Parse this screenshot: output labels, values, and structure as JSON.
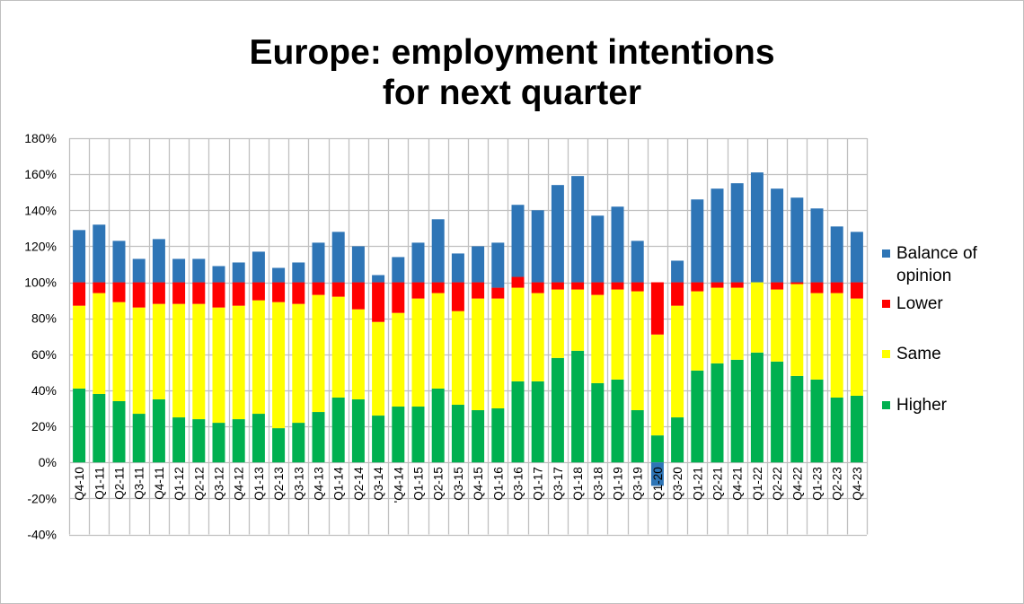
{
  "chart_data": {
    "type": "bar",
    "stacked": true,
    "title": [
      "Europe: employment intentions",
      "for next quarter"
    ],
    "xlabel": "",
    "ylabel": "",
    "ylim": [
      -40,
      180
    ],
    "yticks": [
      180,
      160,
      140,
      120,
      100,
      80,
      60,
      40,
      20,
      0,
      -20,
      -40
    ],
    "ytick_labels": [
      "180%",
      "160%",
      "140%",
      "120%",
      "100%",
      "80%",
      "60%",
      "40%",
      "20%",
      "0%",
      "-20%",
      "-40%"
    ],
    "grid": true,
    "legend_position": "right",
    "categories": [
      "Q4-10",
      "Q1-11",
      "Q2-11",
      "Q3-11",
      "Q4-11",
      "Q1-12",
      "Q2-12",
      "Q3-12",
      "Q4-12",
      "Q1-13",
      "Q2-13",
      "Q3-13",
      "Q4-13",
      "Q1-14",
      "Q2-14",
      "Q3-14",
      "'Q4-14",
      "Q1-15",
      "Q2-15",
      "Q3-15",
      "Q4-15",
      "Q1-16",
      "Q3-16",
      "Q1-17",
      "Q3-17",
      "Q1-18",
      "Q3-18",
      "Q1-19",
      "Q3-19",
      "Q1-20",
      "Q3-20",
      "Q1-21",
      "Q2-21",
      "Q4-21",
      "Q1-22",
      "Q2-22",
      "Q4-22",
      "Q1-23",
      "Q2-23",
      "Q4-23"
    ],
    "series": [
      {
        "name": "Higher",
        "color": "#00B050",
        "values": [
          41,
          38,
          34,
          27,
          35,
          25,
          24,
          22,
          24,
          27,
          19,
          22,
          28,
          36,
          35,
          26,
          31,
          31,
          41,
          32,
          29,
          30,
          45,
          45,
          58,
          62,
          44,
          46,
          29,
          15,
          25,
          51,
          55,
          57,
          61,
          56,
          48,
          46,
          36,
          37
        ]
      },
      {
        "name": "Same",
        "color": "#FFFF00",
        "values": [
          46,
          56,
          55,
          59,
          53,
          63,
          64,
          64,
          63,
          63,
          70,
          66,
          65,
          56,
          50,
          52,
          52,
          60,
          53,
          52,
          62,
          61,
          52,
          49,
          38,
          34,
          49,
          50,
          66,
          56,
          62,
          44,
          42,
          40,
          39,
          40,
          51,
          48,
          58,
          54
        ]
      },
      {
        "name": "Lower",
        "color": "#FF0000",
        "values": [
          13,
          6,
          11,
          14,
          12,
          12,
          12,
          14,
          13,
          10,
          11,
          12,
          7,
          8,
          15,
          22,
          17,
          9,
          6,
          16,
          9,
          6,
          6,
          6,
          4,
          4,
          7,
          4,
          5,
          29,
          13,
          5,
          3,
          3,
          0,
          4,
          1,
          6,
          6,
          9
        ]
      },
      {
        "name": "Balance of opinion",
        "color": "#2E75B6",
        "values": [
          29,
          32,
          23,
          13,
          24,
          13,
          13,
          9,
          11,
          17,
          8,
          11,
          22,
          28,
          20,
          4,
          14,
          22,
          35,
          16,
          20,
          25,
          40,
          40,
          54,
          59,
          37,
          42,
          23,
          -13,
          12,
          46,
          52,
          55,
          61,
          52,
          47,
          41,
          31,
          28
        ]
      }
    ]
  },
  "legend": [
    {
      "label": "Balance of opinion",
      "color": "#2E75B6"
    },
    {
      "label": "Lower",
      "color": "#FF0000"
    },
    {
      "label": "Same",
      "color": "#FFFF00"
    },
    {
      "label": "Higher",
      "color": "#00B050"
    }
  ],
  "colors": {
    "grid": "#C0C0C0",
    "text": "#000000",
    "frame": "#BFBFBF"
  }
}
